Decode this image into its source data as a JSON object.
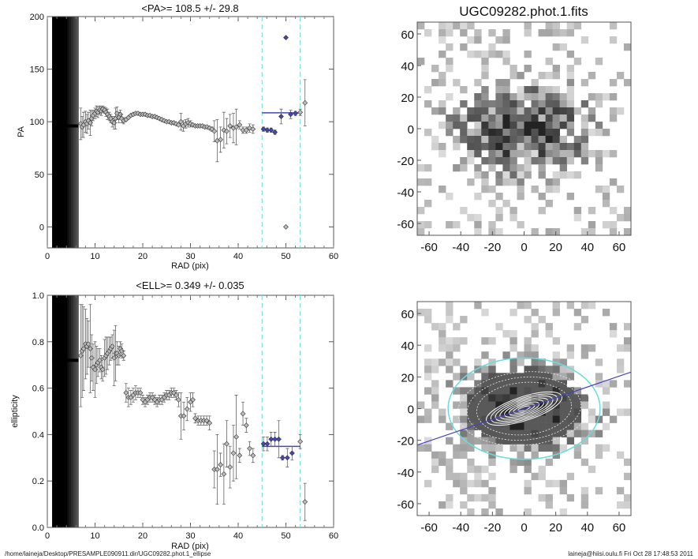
{
  "chart_data": [
    {
      "type": "scatter",
      "title": "<PA>= 108.5 +/-  29.8",
      "xlabel": "RAD (pix)",
      "ylabel": "PA",
      "xlim": [
        0,
        60
      ],
      "ylim": [
        -20,
        200
      ],
      "xticks": [
        0,
        10,
        20,
        30,
        40,
        50,
        60
      ],
      "yticks": [
        0,
        50,
        100,
        150,
        200
      ],
      "inner_band": {
        "x": [
          1,
          6.5
        ],
        "value": 96
      },
      "fit_range": [
        45,
        53
      ],
      "fit_value": 108.5,
      "points": [
        [
          7,
          98,
          15
        ],
        [
          7.3,
          95,
          10
        ],
        [
          7.6,
          97,
          12
        ],
        [
          8,
          100,
          10
        ],
        [
          8.3,
          98,
          9
        ],
        [
          8.6,
          101,
          8
        ],
        [
          9,
          99,
          12
        ],
        [
          9.3,
          103,
          7
        ],
        [
          9.6,
          106,
          5
        ],
        [
          10,
          108,
          5
        ],
        [
          10.3,
          110,
          5
        ],
        [
          10.6,
          109,
          5
        ],
        [
          11,
          111,
          4
        ],
        [
          11.3,
          110,
          4
        ],
        [
          11.6,
          112,
          3
        ],
        [
          12,
          111,
          3
        ],
        [
          12.3,
          109,
          4
        ],
        [
          12.6,
          107,
          5
        ],
        [
          13,
          105,
          4
        ],
        [
          13.3,
          103,
          4
        ],
        [
          13.6,
          100,
          5
        ],
        [
          14,
          99,
          6
        ],
        [
          14.3,
          103,
          10
        ],
        [
          14.6,
          108,
          6
        ],
        [
          15,
          104,
          5
        ],
        [
          15.3,
          107,
          4
        ],
        [
          15.6,
          103,
          4
        ],
        [
          16,
          101,
          3
        ],
        [
          16.5,
          102,
          1
        ],
        [
          17,
          104,
          1
        ],
        [
          17.5,
          106,
          1
        ],
        [
          18,
          107,
          1
        ],
        [
          18.5,
          108,
          1
        ],
        [
          19,
          108,
          1
        ],
        [
          19.5,
          107,
          1
        ],
        [
          20,
          107,
          1
        ],
        [
          20.5,
          107,
          1
        ],
        [
          21,
          106,
          1
        ],
        [
          21.5,
          106,
          1
        ],
        [
          22,
          105,
          1
        ],
        [
          22.5,
          105,
          1
        ],
        [
          23,
          104,
          1
        ],
        [
          23.5,
          103,
          1
        ],
        [
          24,
          102,
          1
        ],
        [
          24.5,
          101,
          1
        ],
        [
          25,
          100,
          1
        ],
        [
          25.5,
          100,
          1
        ],
        [
          26,
          99,
          1
        ],
        [
          26.5,
          99,
          1
        ],
        [
          27,
          98,
          1
        ],
        [
          27.5,
          97,
          1
        ],
        [
          28,
          100,
          8
        ],
        [
          28.5,
          96,
          5
        ],
        [
          29,
          98,
          4
        ],
        [
          29.5,
          99,
          4
        ],
        [
          30,
          98,
          3
        ],
        [
          30.5,
          97,
          1
        ],
        [
          31,
          96,
          1
        ],
        [
          31.5,
          96,
          1
        ],
        [
          32,
          96,
          1
        ],
        [
          32.5,
          96,
          1
        ],
        [
          33,
          95,
          1
        ],
        [
          33.5,
          95,
          1
        ],
        [
          34,
          94,
          1
        ],
        [
          34.5,
          93,
          2
        ],
        [
          35,
          91,
          10
        ],
        [
          35.6,
          82,
          20
        ],
        [
          36.3,
          83,
          12
        ],
        [
          37,
          92,
          17
        ],
        [
          37.6,
          91,
          12
        ],
        [
          38.3,
          96,
          11
        ],
        [
          39,
          94,
          14
        ],
        [
          39.6,
          95,
          17
        ],
        [
          40.3,
          97,
          4
        ],
        [
          41,
          92,
          3
        ],
        [
          41.7,
          92,
          3
        ],
        [
          42.4,
          94,
          4
        ],
        [
          43.1,
          93,
          4
        ],
        [
          50,
          0,
          0
        ],
        [
          53,
          109,
          3
        ],
        [
          54,
          118,
          22
        ]
      ],
      "fit_points": [
        [
          45.3,
          93,
          2
        ],
        [
          46.1,
          92,
          2
        ],
        [
          46.9,
          92,
          2
        ],
        [
          47.7,
          90,
          2
        ],
        [
          49,
          105,
          7
        ],
        [
          50,
          180,
          0
        ],
        [
          51,
          107,
          4
        ],
        [
          52,
          108,
          2
        ]
      ]
    },
    {
      "type": "scatter",
      "title": "<ELL>= 0.349 +/-  0.035",
      "xlabel": "RAD (pix)",
      "ylabel": "ellipticity",
      "xlim": [
        0,
        60
      ],
      "ylim": [
        0,
        1
      ],
      "xticks": [
        0,
        10,
        20,
        30,
        40,
        50,
        60
      ],
      "yticks": [
        0.0,
        0.2,
        0.4,
        0.6,
        0.8,
        1.0
      ],
      "inner_band": {
        "x": [
          1,
          6.5
        ],
        "value": 0.72
      },
      "fit_range": [
        45,
        53
      ],
      "fit_value": 0.349,
      "points": [
        [
          7,
          0.74,
          0.22
        ],
        [
          7.3,
          0.76,
          0.2
        ],
        [
          7.6,
          0.77,
          0.18
        ],
        [
          8,
          0.79,
          0.15
        ],
        [
          8.3,
          0.78,
          0.12
        ],
        [
          8.6,
          0.79,
          0.1
        ],
        [
          9,
          0.77,
          0.19
        ],
        [
          9.3,
          0.73,
          0.1
        ],
        [
          9.6,
          0.69,
          0.1
        ],
        [
          10,
          0.68,
          0.12
        ],
        [
          10.3,
          0.7,
          0.08
        ],
        [
          10.6,
          0.71,
          0.06
        ],
        [
          11,
          0.72,
          0.05
        ],
        [
          11.3,
          0.69,
          0.05
        ],
        [
          11.6,
          0.68,
          0.05
        ],
        [
          12,
          0.73,
          0.08
        ],
        [
          12.3,
          0.74,
          0.08
        ],
        [
          12.6,
          0.75,
          0.07
        ],
        [
          13,
          0.76,
          0.06
        ],
        [
          13.3,
          0.77,
          0.05
        ],
        [
          13.6,
          0.78,
          0.05
        ],
        [
          14,
          0.73,
          0.12
        ],
        [
          14.3,
          0.75,
          0.12
        ],
        [
          14.6,
          0.75,
          0.05
        ],
        [
          15,
          0.74,
          0.04
        ],
        [
          15.3,
          0.77,
          0.03
        ],
        [
          15.6,
          0.76,
          0.03
        ],
        [
          16,
          0.74,
          0.02
        ],
        [
          16.5,
          0.58,
          0.04
        ],
        [
          17,
          0.56,
          0.04
        ],
        [
          17.5,
          0.56,
          0.03
        ],
        [
          18,
          0.57,
          0.03
        ],
        [
          18.5,
          0.58,
          0.03
        ],
        [
          19,
          0.58,
          0.02
        ],
        [
          19.5,
          0.58,
          0.02
        ],
        [
          20,
          0.55,
          0.02
        ],
        [
          20.5,
          0.54,
          0.02
        ],
        [
          21,
          0.55,
          0.02
        ],
        [
          21.5,
          0.56,
          0.02
        ],
        [
          22,
          0.56,
          0.02
        ],
        [
          22.5,
          0.55,
          0.02
        ],
        [
          23,
          0.54,
          0.02
        ],
        [
          23.5,
          0.55,
          0.02
        ],
        [
          24,
          0.55,
          0.02
        ],
        [
          24.5,
          0.56,
          0.02
        ],
        [
          25,
          0.57,
          0.02
        ],
        [
          25.5,
          0.57,
          0.02
        ],
        [
          26,
          0.58,
          0.02
        ],
        [
          26.5,
          0.58,
          0.02
        ],
        [
          27,
          0.57,
          0.02
        ],
        [
          27.5,
          0.55,
          0.03
        ],
        [
          28,
          0.48,
          0.1
        ],
        [
          28.6,
          0.48,
          0.06
        ],
        [
          29.3,
          0.51,
          0.05
        ],
        [
          30,
          0.54,
          0.04
        ],
        [
          30.5,
          0.55,
          0.03
        ],
        [
          31,
          0.47,
          0.02
        ],
        [
          31.6,
          0.46,
          0.02
        ],
        [
          32.2,
          0.46,
          0.02
        ],
        [
          32.8,
          0.46,
          0.02
        ],
        [
          33.4,
          0.46,
          0.02
        ],
        [
          34,
          0.45,
          0.03
        ],
        [
          35,
          0.25,
          0.08
        ],
        [
          35.6,
          0.25,
          0.15
        ],
        [
          36.3,
          0.27,
          0.05
        ],
        [
          37,
          0.23,
          0.13
        ],
        [
          37.6,
          0.36,
          0.1
        ],
        [
          38.3,
          0.26,
          0.09
        ],
        [
          39,
          0.32,
          0.12
        ],
        [
          39.6,
          0.39,
          0.18
        ],
        [
          40.3,
          0.31,
          0.03
        ],
        [
          41,
          0.49,
          0.05
        ],
        [
          41.7,
          0.44,
          0.03
        ],
        [
          42.4,
          0.34,
          0.03
        ],
        [
          43.1,
          0.31,
          0.03
        ],
        [
          53,
          0.37,
          0.03
        ],
        [
          54,
          0.11,
          0.08
        ]
      ],
      "fit_points": [
        [
          45.3,
          0.36,
          0.03
        ],
        [
          46.1,
          0.36,
          0.03
        ],
        [
          46.9,
          0.38,
          0.03
        ],
        [
          47.7,
          0.38,
          0.03
        ],
        [
          48.5,
          0.38,
          0.08
        ],
        [
          49.3,
          0.3,
          0.01
        ],
        [
          50.3,
          0.3,
          0.04
        ],
        [
          51.3,
          0.32,
          0.03
        ]
      ]
    },
    {
      "type": "heatmap",
      "title": "UGC09282.phot.1.fits",
      "xlim": [
        -67.5,
        67.5
      ],
      "ylim": [
        -67.5,
        67.5
      ],
      "xticks": [
        -60,
        -40,
        -20,
        0,
        20,
        40,
        60
      ],
      "yticks": [
        -60,
        -40,
        -20,
        0,
        20,
        40,
        60
      ]
    },
    {
      "type": "heatmap",
      "title": "",
      "xlim": [
        -67.5,
        67.5
      ],
      "ylim": [
        -67.5,
        67.5
      ],
      "xticks": [
        -60,
        -40,
        -20,
        0,
        20,
        40,
        60
      ],
      "yticks": [
        -60,
        -40,
        -20,
        0,
        20,
        40,
        60
      ],
      "overlay": {
        "fit_ellipse_semi_major": 48,
        "fit_ellipticity": 0.349,
        "position_angle": 108.5
      }
    }
  ],
  "footer": {
    "path": "/home/laineja/Desktop/PRESAMPLE090911.dir/UGC09282.phot.1_ellipse",
    "stamp": "laineja@hiisi.oulu.fi  Fri Oct 28 17:48:53 2011"
  },
  "colors": {
    "fit": "#4444bb",
    "range": "#66dddd",
    "marker": "#888888"
  }
}
